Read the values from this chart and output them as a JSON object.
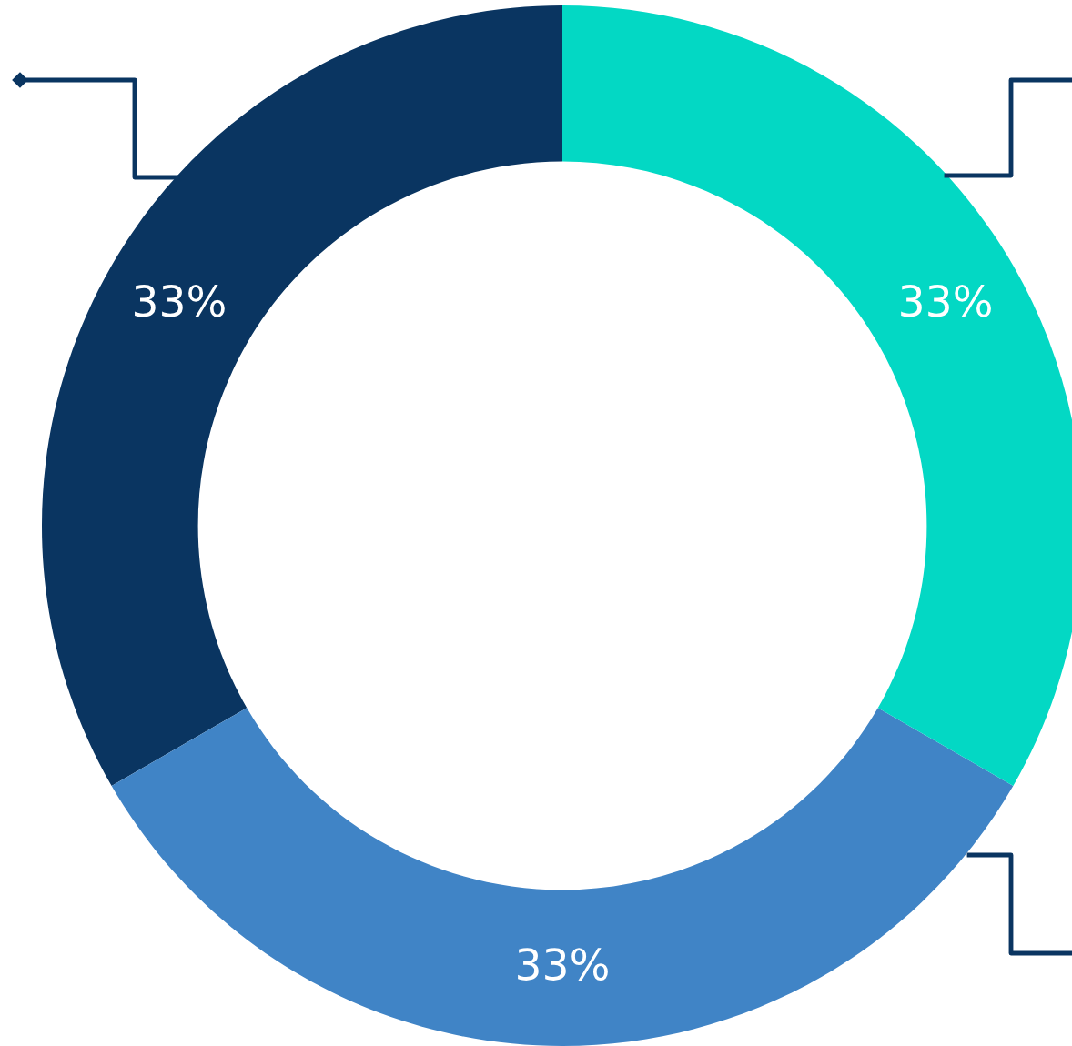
{
  "chart_data": {
    "type": "donut",
    "categories": [
      null,
      null,
      null
    ],
    "values": [
      33,
      33,
      33
    ],
    "colors": [
      "#0a3561",
      "#4084c6",
      "#03d8c4"
    ],
    "value_labels": [
      "33%",
      "33%",
      "33%"
    ],
    "legend": false
  }
}
